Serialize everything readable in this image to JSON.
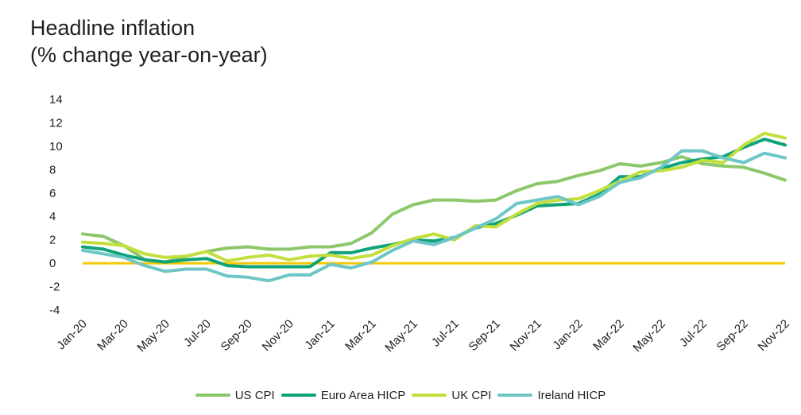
{
  "chart_data": {
    "type": "line",
    "title": "Headline inflation",
    "subtitle": "(% change year-on-year)",
    "xlabel": "",
    "ylabel": "",
    "ylim": [
      -4,
      14
    ],
    "yticks": [
      "14",
      "12",
      "10",
      "8",
      "6",
      "4",
      "2",
      "0",
      "-2",
      "-4"
    ],
    "ytick_values": [
      14,
      12,
      10,
      8,
      6,
      4,
      2,
      0,
      -2,
      -4
    ],
    "x": [
      "Jan-20",
      "Feb-20",
      "Mar-20",
      "Apr-20",
      "May-20",
      "Jun-20",
      "Jul-20",
      "Aug-20",
      "Sep-20",
      "Oct-20",
      "Nov-20",
      "Dec-20",
      "Jan-21",
      "Feb-21",
      "Mar-21",
      "Apr-21",
      "May-21",
      "Jun-21",
      "Jul-21",
      "Aug-21",
      "Sep-21",
      "Oct-21",
      "Nov-21",
      "Dec-21",
      "Jan-22",
      "Feb-22",
      "Mar-22",
      "Apr-22",
      "May-22",
      "Jun-22",
      "Jul-22",
      "Aug-22",
      "Sep-22",
      "Oct-22",
      "Nov-22"
    ],
    "xtick_labels": [
      "Jan-20",
      "Mar-20",
      "May-20",
      "Jul-20",
      "Sep-20",
      "Nov-20",
      "Jan-21",
      "Mar-21",
      "May-21",
      "Jul-21",
      "Sep-21",
      "Nov-21",
      "Jan-22",
      "Mar-22",
      "May-22",
      "Jul-22",
      "Sep-22",
      "Nov-22"
    ],
    "grid": false,
    "legend_position": "bottom",
    "zero_line_color": "#f5c800",
    "series": [
      {
        "name": "US CPI",
        "color": "#8cc76a",
        "values": [
          2.5,
          2.3,
          1.5,
          0.3,
          0.1,
          0.6,
          1.0,
          1.3,
          1.4,
          1.2,
          1.2,
          1.4,
          1.4,
          1.7,
          2.6,
          4.2,
          5.0,
          5.4,
          5.4,
          5.3,
          5.4,
          6.2,
          6.8,
          7.0,
          7.5,
          7.9,
          8.5,
          8.3,
          8.6,
          9.1,
          8.5,
          8.3,
          8.2,
          7.7,
          7.1
        ]
      },
      {
        "name": "Euro Area HICP",
        "color": "#0fa37a",
        "values": [
          1.4,
          1.2,
          0.7,
          0.3,
          0.1,
          0.3,
          0.4,
          -0.2,
          -0.3,
          -0.3,
          -0.3,
          -0.3,
          0.9,
          0.9,
          1.3,
          1.6,
          2.0,
          1.9,
          2.2,
          3.0,
          3.4,
          4.1,
          4.9,
          5.0,
          5.1,
          5.9,
          7.4,
          7.4,
          8.1,
          8.6,
          8.9,
          9.1,
          9.9,
          10.6,
          10.1
        ]
      },
      {
        "name": "UK CPI",
        "color": "#c2df3c",
        "values": [
          1.8,
          1.7,
          1.5,
          0.8,
          0.5,
          0.6,
          1.0,
          0.2,
          0.5,
          0.7,
          0.3,
          0.6,
          0.7,
          0.4,
          0.7,
          1.5,
          2.1,
          2.5,
          2.0,
          3.2,
          3.1,
          4.2,
          5.1,
          5.4,
          5.5,
          6.2,
          7.0,
          7.8,
          7.9,
          8.2,
          8.8,
          8.6,
          10.1,
          11.1,
          10.7
        ]
      },
      {
        "name": "Ireland HICP",
        "color": "#6ec6c6",
        "values": [
          1.1,
          0.8,
          0.5,
          -0.2,
          -0.7,
          -0.5,
          -0.5,
          -1.1,
          -1.2,
          -1.5,
          -1.0,
          -1.0,
          -0.1,
          -0.4,
          0.1,
          1.1,
          1.9,
          1.6,
          2.2,
          3.0,
          3.8,
          5.1,
          5.4,
          5.7,
          5.0,
          5.7,
          6.9,
          7.3,
          8.2,
          9.6,
          9.6,
          9.0,
          8.6,
          9.4,
          9.0
        ]
      }
    ]
  }
}
